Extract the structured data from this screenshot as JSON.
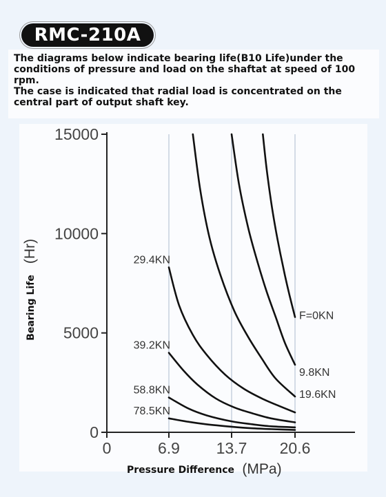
{
  "header": {
    "model": "RMC-210A",
    "desc1": "The diagrams below indicate bearing life(B10 Life)under the conditions of pressure and load on the shaftat at speed of 100 rpm.",
    "desc2": "The case is indicated that radial load is concentrated on the central part  of output shaft key."
  },
  "chart_data": {
    "type": "line",
    "xlabel": "Pressure Difference",
    "xunit": "(MPa)",
    "ylabel": "Bearing Life",
    "yunit": "(Hr)",
    "xlim": [
      0,
      24
    ],
    "ylim": [
      0,
      15000
    ],
    "xticks": [
      0,
      6.9,
      13.7,
      20.6
    ],
    "xtick_labels": [
      "0",
      "6.9",
      "13.7",
      "20.6"
    ],
    "yticks": [
      0,
      5000,
      10000,
      15000
    ],
    "ytick_labels": [
      "0",
      "5000",
      "10000",
      "15000"
    ],
    "grid": true,
    "series": [
      {
        "name": "F=0KN",
        "x": [
          17.1,
          17.5,
          18.0,
          18.5,
          19.0,
          19.5,
          20.0,
          20.6
        ],
        "y": [
          15000,
          13300,
          11600,
          10200,
          9000,
          7900,
          6900,
          5800
        ]
      },
      {
        "name": "9.8KN",
        "x": [
          13.7,
          14.5,
          15.5,
          16.5,
          17.5,
          18.5,
          19.5,
          20.6
        ],
        "y": [
          15000,
          12500,
          10300,
          8600,
          7100,
          5800,
          4500,
          3400
        ]
      },
      {
        "name": "19.6KN",
        "x": [
          9.5,
          10.3,
          11.3,
          12.5,
          14.0,
          15.5,
          17.0,
          18.5,
          20.6
        ],
        "y": [
          15000,
          12200,
          9800,
          7900,
          6100,
          4800,
          3700,
          2700,
          1800
        ]
      },
      {
        "name": "29.4KN",
        "x": [
          6.9,
          8.0,
          9.5,
          11.0,
          13.0,
          15.0,
          17.0,
          19.0,
          20.6
        ],
        "y": [
          8300,
          6400,
          4900,
          3900,
          2900,
          2200,
          1700,
          1300,
          1000
        ]
      },
      {
        "name": "39.2KN",
        "x": [
          6.9,
          8.5,
          10.0,
          12.0,
          14.0,
          16.0,
          18.0,
          20.6
        ],
        "y": [
          4000,
          3100,
          2400,
          1700,
          1250,
          950,
          700,
          500
        ]
      },
      {
        "name": "58.8KN",
        "x": [
          6.9,
          9.0,
          11.0,
          13.7,
          16.0,
          18.0,
          20.6
        ],
        "y": [
          1750,
          1200,
          850,
          550,
          400,
          300,
          250
        ]
      },
      {
        "name": "78.5KN",
        "x": [
          6.9,
          9.0,
          11.0,
          13.7,
          16.0,
          18.0,
          20.6
        ],
        "y": [
          700,
          530,
          400,
          280,
          200,
          160,
          120
        ]
      }
    ]
  }
}
